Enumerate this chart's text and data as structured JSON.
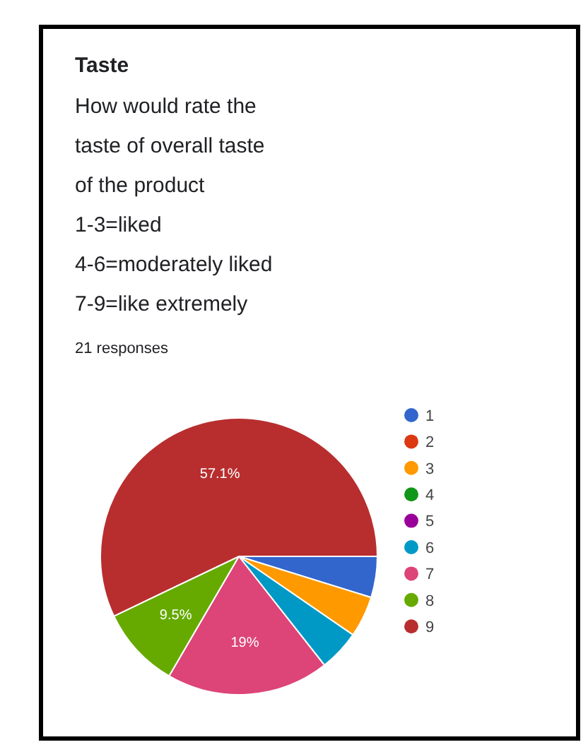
{
  "chart_data": {
    "type": "pie",
    "title": "Taste",
    "subtitle": "How would rate the\ntaste of overall taste\nof the product\n1-3=liked\n4-6=moderately liked\n7-9=like extremely",
    "annotations": [
      "21 responses"
    ],
    "categories": [
      "1",
      "2",
      "3",
      "4",
      "5",
      "6",
      "7",
      "8",
      "9"
    ],
    "values": [
      4.8,
      0,
      4.8,
      0,
      0,
      4.8,
      19,
      9.5,
      57.1
    ],
    "value_labels": [
      null,
      null,
      null,
      null,
      null,
      null,
      "19%",
      "9.5%",
      "57.1%"
    ],
    "colors": [
      "#3366cc",
      "#dc3912",
      "#ff9900",
      "#109618",
      "#990099",
      "#0099c6",
      "#dd4477",
      "#66aa00",
      "#b82e2e"
    ],
    "legend": "right"
  }
}
